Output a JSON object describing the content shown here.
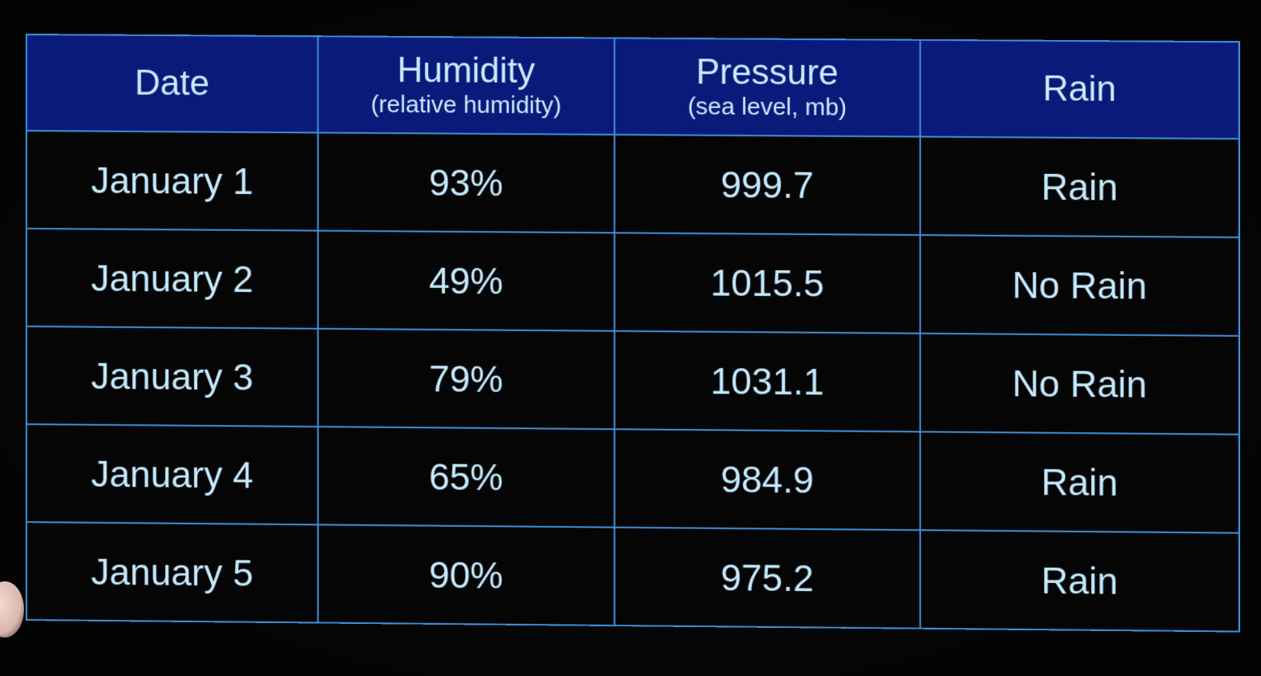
{
  "table": {
    "headers": [
      {
        "main": "Date",
        "sub": ""
      },
      {
        "main": "Humidity",
        "sub": "(relative humidity)"
      },
      {
        "main": "Pressure",
        "sub": "(sea level, mb)"
      },
      {
        "main": "Rain",
        "sub": ""
      }
    ],
    "rows": [
      [
        "January 1",
        "93%",
        "999.7",
        "Rain"
      ],
      [
        "January 2",
        "49%",
        "1015.5",
        "No Rain"
      ],
      [
        "January 3",
        "79%",
        "1031.1",
        "No Rain"
      ],
      [
        "January 4",
        "65%",
        "984.9",
        "Rain"
      ],
      [
        "January 5",
        "90%",
        "975.2",
        "Rain"
      ]
    ]
  },
  "colors": {
    "header_bg": "#0a1a7a",
    "grid_line": "#3f8fd8",
    "text": "#c4e9ff",
    "background": "#050505"
  }
}
